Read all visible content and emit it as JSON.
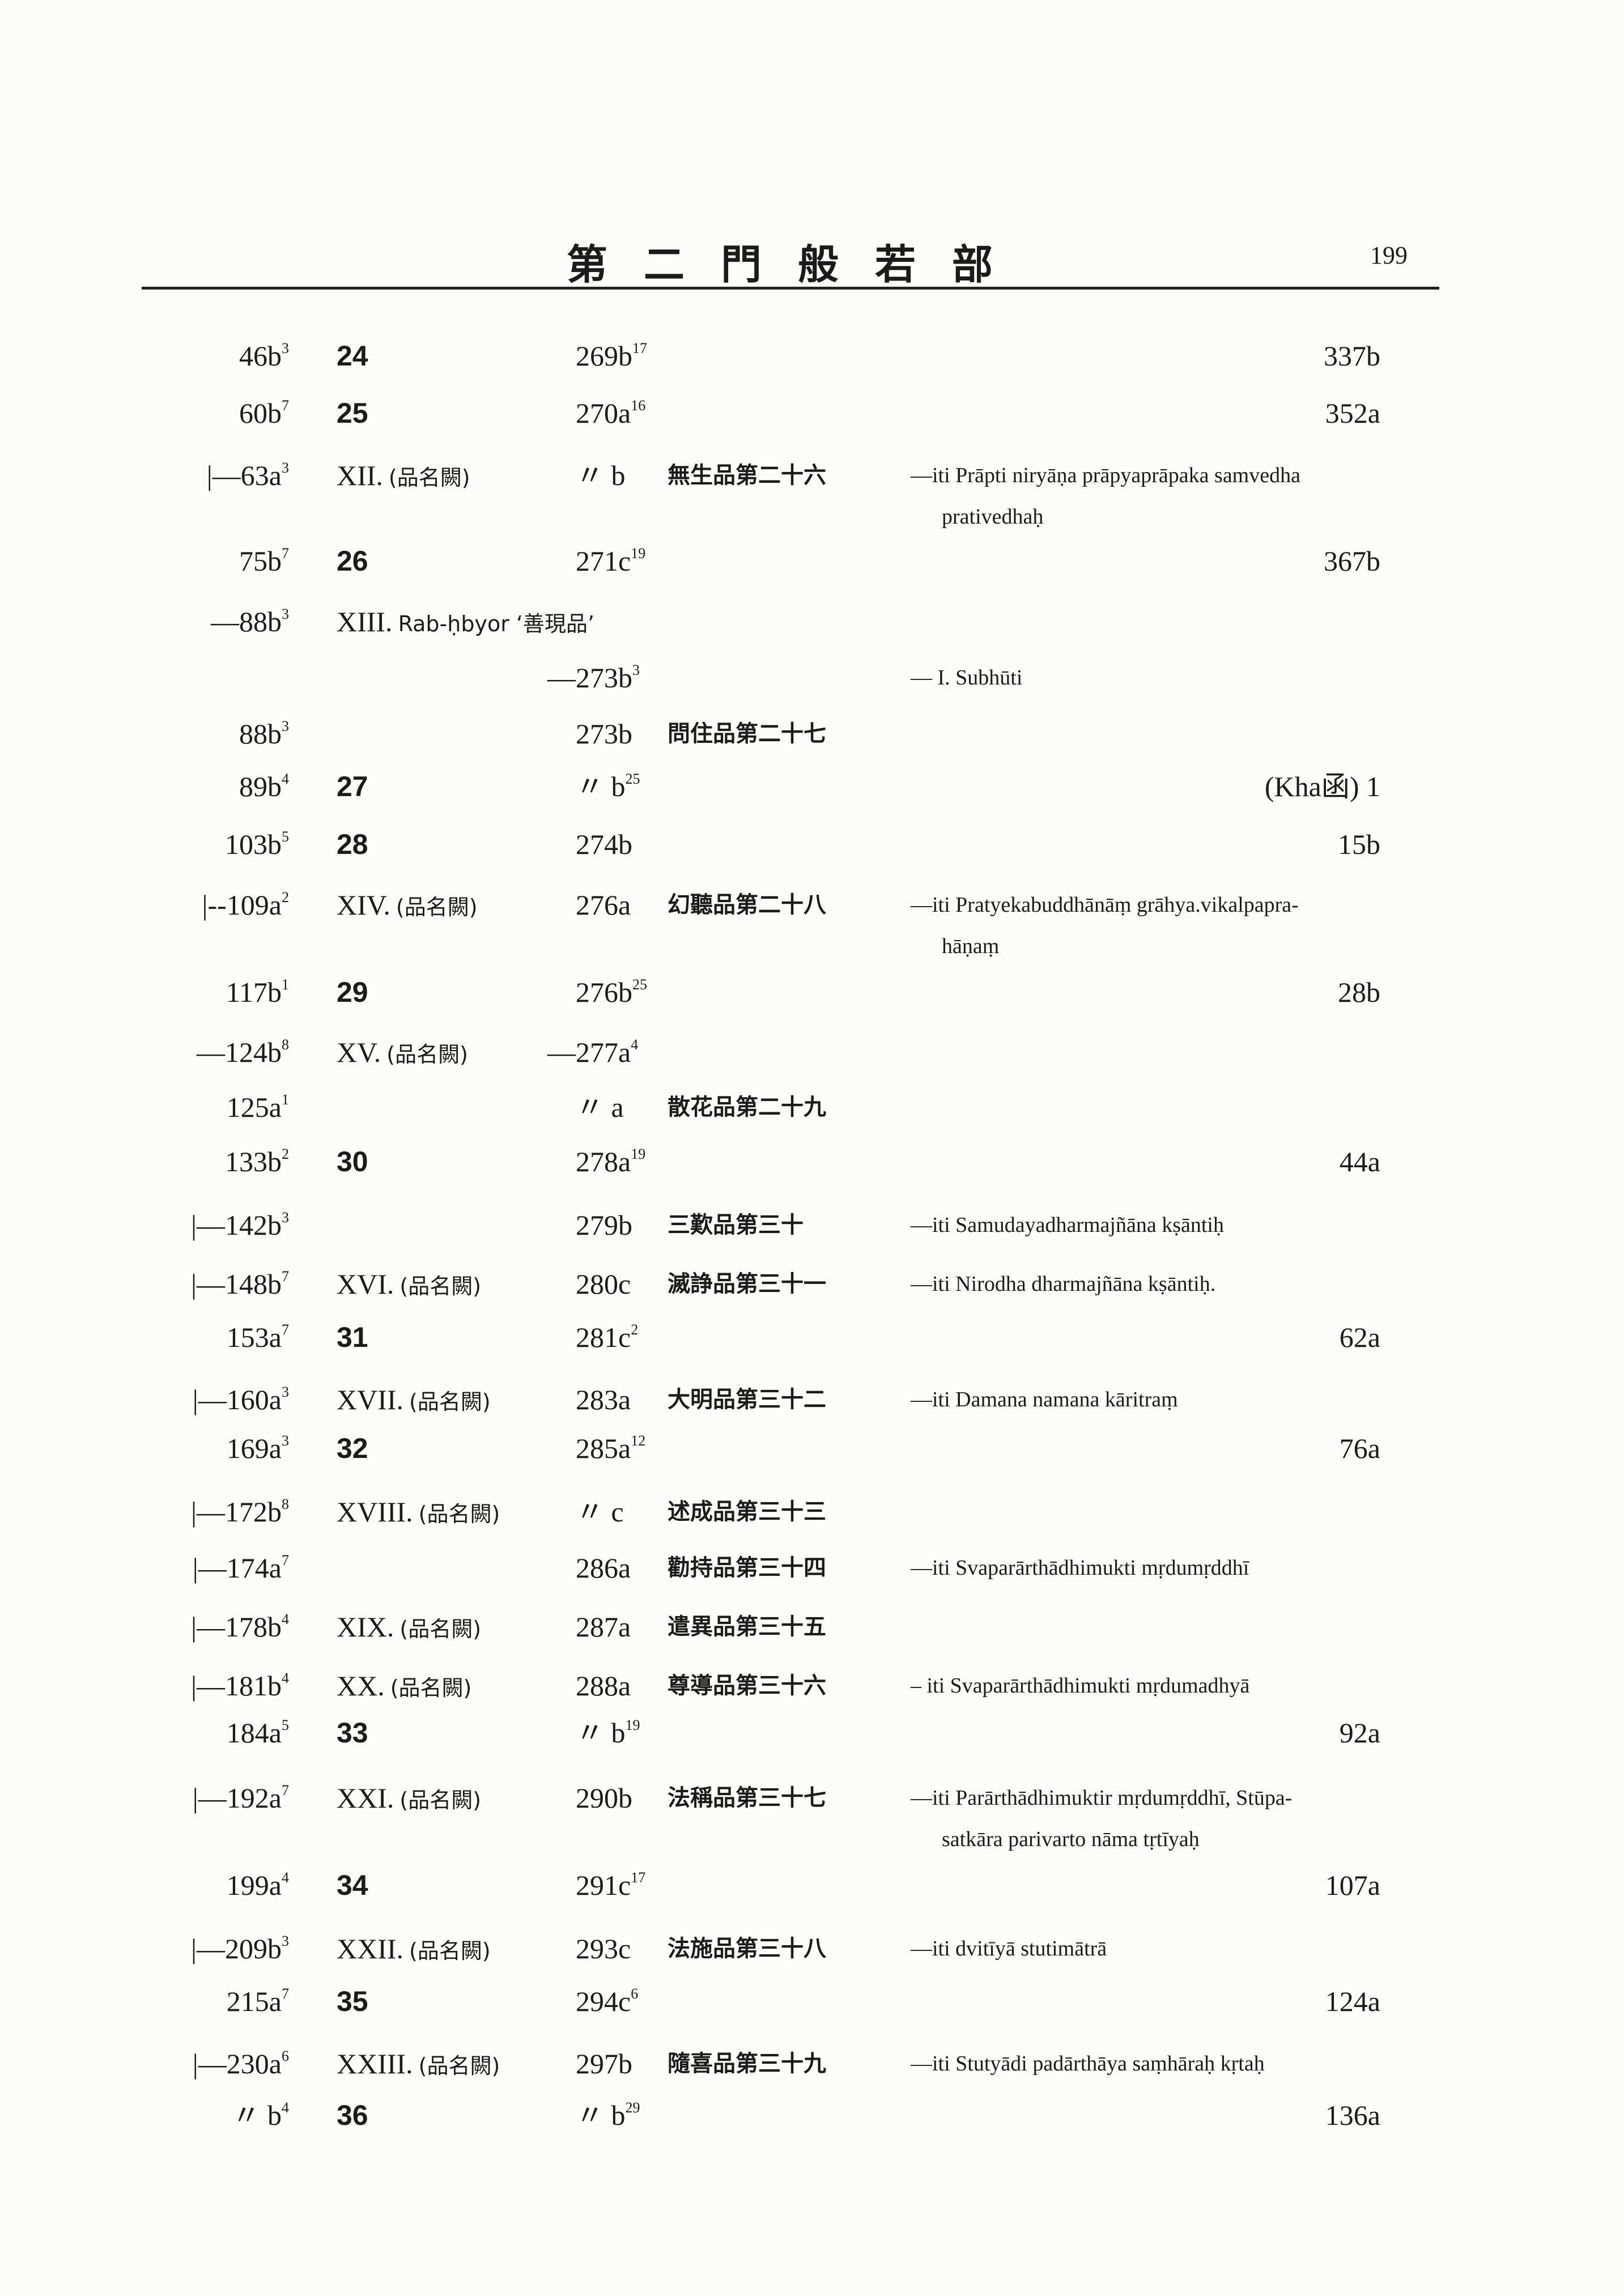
{
  "header": {
    "title": "第二門般若部",
    "page_number": "199"
  },
  "rows": [
    {
      "ref": "46b",
      "ref_sup": "3",
      "num": "24",
      "tai": "269b",
      "tai_sup": "17",
      "page": "337b"
    },
    {
      "ref": "60b",
      "ref_sup": "7",
      "num": "25",
      "tai": "270a",
      "tai_sup": "16",
      "page": "352a"
    },
    {
      "ref": "|—63a",
      "ref_sup": "3",
      "chap": "XII.",
      "chap_note": "(品名闕)",
      "tai": "〃 b",
      "title_zh": "無生品第二十六",
      "note": "—iti Prāpti niryāṇa prāpyaprāpaka samvedha",
      "note2": "prativedhaḥ"
    },
    {
      "ref": "75b",
      "ref_sup": "7",
      "num": "26",
      "tai": "271c",
      "tai_sup": "19",
      "page": "367b"
    },
    {
      "ref": "—88b",
      "ref_sup": "3",
      "chap": "XIII.",
      "chap_note": "Rab-ḥbyor ‘善現品’"
    },
    {
      "tai_pre": "—",
      "tai": "273b",
      "tai_sup": "3",
      "note": "—      I. Subhūti"
    },
    {
      "ref": "88b",
      "ref_sup": "3",
      "tai": "273b",
      "title_zh": "問住品第二十七"
    },
    {
      "ref": "89b",
      "ref_sup": "4",
      "num": "27",
      "tai": "〃 b",
      "tai_sup": "25",
      "page": "(Kha函) 1"
    },
    {
      "ref": "103b",
      "ref_sup": "5",
      "num": "28",
      "tai": "274b",
      "page": "15b"
    },
    {
      "ref": "|--109a",
      "ref_sup": "2",
      "chap": "XIV.",
      "chap_note": "(品名闕)",
      "tai": "276a",
      "title_zh": "幻聽品第二十八",
      "note": "—iti Pratyekabuddhānāṃ grāhya.vikalpapra-",
      "note2": "hāṇaṃ"
    },
    {
      "ref": "117b",
      "ref_sup": "1",
      "num": "29",
      "tai": "276b",
      "tai_sup": "25",
      "page": "28b"
    },
    {
      "ref": "—124b",
      "ref_sup": "8",
      "chap": "XV.",
      "chap_note": "(品名闕)",
      "tai_pre": "—",
      "tai": "277a",
      "tai_sup": "4"
    },
    {
      "ref": "125a",
      "ref_sup": "1",
      "tai": "〃 a",
      "title_zh": "散花品第二十九"
    },
    {
      "ref": "133b",
      "ref_sup": "2",
      "num": "30",
      "tai": "278a",
      "tai_sup": "19",
      "page": "44a"
    },
    {
      "ref": "|—142b",
      "ref_sup": "3",
      "tai": "279b",
      "title_zh": "三歎品第三十",
      "note": "—iti Samudayadharmajñāna kṣāntiḥ"
    },
    {
      "ref": "|—148b",
      "ref_sup": "7",
      "chap": "XVI.",
      "chap_note": "(品名闕)",
      "tai": "280c",
      "title_zh": "滅諍品第三十一",
      "note": "—iti Nirodha dharmajñāna kṣāntiḥ."
    },
    {
      "ref": "153a",
      "ref_sup": "7",
      "num": "31",
      "tai": "281c",
      "tai_sup": "2",
      "page": "62a"
    },
    {
      "ref": "|—160a",
      "ref_sup": "3",
      "chap": "XVII.",
      "chap_note": "(品名闕)",
      "tai": "283a",
      "title_zh": "大明品第三十二",
      "note": "—iti Damana namana kāritraṃ"
    },
    {
      "ref": "169a",
      "ref_sup": "3",
      "num": "32",
      "tai": "285a",
      "tai_sup": "12",
      "page": "76a"
    },
    {
      "ref": "|—172b",
      "ref_sup": "8",
      "chap": "XVIII.",
      "chap_note": "(品名闕)",
      "tai": "〃 c",
      "title_zh": "述成品第三十三"
    },
    {
      "ref": "|—174a",
      "ref_sup": "7",
      "tai": "286a",
      "title_zh": "勸持品第三十四",
      "note": "—iti Svaparārthādhimukti mṛdumṛddhī"
    },
    {
      "ref": "|—178b",
      "ref_sup": "4",
      "chap": "XIX.",
      "chap_note": "(品名闕)",
      "tai": "287a",
      "title_zh": "遣異品第三十五"
    },
    {
      "ref": "|—181b",
      "ref_sup": "4",
      "chap": "XX.",
      "chap_note": "(品名闕)",
      "tai": "288a",
      "title_zh": "尊導品第三十六",
      "note": "– iti Svaparārthādhimukti mṛdumadhyā"
    },
    {
      "ref": "184a",
      "ref_sup": "5",
      "num": "33",
      "tai": "〃 b",
      "tai_sup": "19",
      "page": "92a"
    },
    {
      "ref": "|—192a",
      "ref_sup": "7",
      "chap": "XXI.",
      "chap_note": "(品名闕)",
      "tai": "290b",
      "title_zh": "法稱品第三十七",
      "note": "—iti Parārthādhimuktir mṛdumṛddhī, Stūpa-",
      "note2": "satkāra parivarto nāma tṛtīyaḥ"
    },
    {
      "ref": "199a",
      "ref_sup": "4",
      "num": "34",
      "tai": "291c",
      "tai_sup": "17",
      "page": "107a"
    },
    {
      "ref": "|—209b",
      "ref_sup": "3",
      "chap": "XXII.",
      "chap_note": "(品名闕)",
      "tai": "293c",
      "title_zh": "法施品第三十八",
      "note": "—iti dvitīyā stutimātrā"
    },
    {
      "ref": "215a",
      "ref_sup": "7",
      "num": "35",
      "tai": "294c",
      "tai_sup": "6",
      "page": "124a"
    },
    {
      "ref": "|—230a",
      "ref_sup": "6",
      "chap": "XXIII.",
      "chap_note": "(品名闕)",
      "tai": "297b",
      "title_zh": "隨喜品第三十九",
      "note": "—iti Stutyādi padārthāya saṃhāraḥ kṛtaḥ"
    },
    {
      "ref": "〃 b",
      "ref_sup": "4",
      "num": "36",
      "tai": "〃 b",
      "tai_sup": "29",
      "page": "136a"
    }
  ]
}
